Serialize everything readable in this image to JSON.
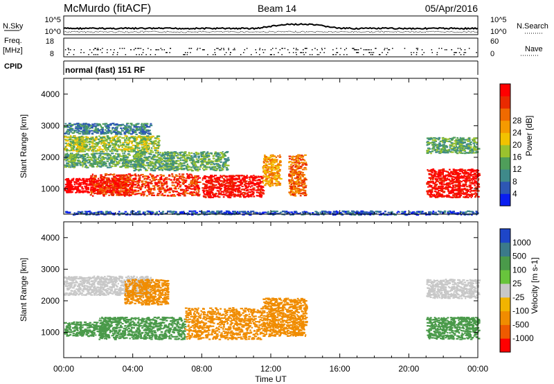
{
  "header": {
    "station": "McMurdo (fitACF)",
    "beam": "Beam 14",
    "date": "05/Apr/2016"
  },
  "status_panels": {
    "nsky_label": "N.Sky",
    "nsky_ticks": [
      "10^5",
      "10^0"
    ],
    "nsearch_label": "N.Search",
    "nsearch_ticks": [
      "10^5",
      "10^0"
    ],
    "freq_label": "Freq.",
    "freq_unit": "[MHz]",
    "freq_ticks": [
      "18",
      "8"
    ],
    "nave_label": "Nave",
    "nave_ticks": [
      "60",
      "0"
    ],
    "cpid_label": "CPID",
    "cpid_text": "normal (fast) 151 RF"
  },
  "chart_data": [
    {
      "type": "heatmap",
      "name": "power",
      "ylabel": "Slant Range [km]",
      "y_ticks": [
        1000,
        2000,
        3000,
        4000
      ],
      "ylim": [
        200,
        4500
      ],
      "xlim_hours": [
        0,
        24
      ],
      "colorbar": {
        "label": "Power [dB]",
        "ticks": [
          "4",
          "8",
          "12",
          "16",
          "20",
          "24",
          "28"
        ],
        "colors": [
          "#0a1ef0",
          "#2e57b4",
          "#3f8a8a",
          "#4f9e5a",
          "#9ac22e",
          "#f2c200",
          "#f59a00",
          "#f06a00",
          "#e92a00",
          "#ff0000"
        ]
      },
      "regions": [
        {
          "t0": 0.0,
          "t1": 4.0,
          "r0": 900,
          "r1": 1350,
          "level": 10
        },
        {
          "t0": 0.0,
          "t1": 4.5,
          "r0": 1700,
          "r1": 2150,
          "level": 3
        },
        {
          "t0": 0.0,
          "t1": 5.5,
          "r0": 2200,
          "r1": 2700,
          "level": 4
        },
        {
          "t0": 0.0,
          "t1": 5.0,
          "r0": 2750,
          "r1": 3100,
          "level": 2
        },
        {
          "t0": 1.5,
          "t1": 7.8,
          "r0": 800,
          "r1": 1500,
          "level": 8
        },
        {
          "t0": 4.0,
          "t1": 9.5,
          "r0": 1600,
          "r1": 2200,
          "level": 3
        },
        {
          "t0": 8.0,
          "t1": 11.5,
          "r0": 750,
          "r1": 1450,
          "level": 9
        },
        {
          "t0": 11.5,
          "t1": 12.5,
          "r0": 1100,
          "r1": 2100,
          "level": 6
        },
        {
          "t0": 13.0,
          "t1": 14.0,
          "r0": 800,
          "r1": 2100,
          "level": 7
        },
        {
          "t0": 21.0,
          "t1": 24.0,
          "r0": 750,
          "r1": 1650,
          "level": 9
        },
        {
          "t0": 21.0,
          "t1": 24.0,
          "r0": 2150,
          "r1": 2650,
          "level": 3
        },
        {
          "t0": 0.0,
          "t1": 24.0,
          "r0": 200,
          "r1": 320,
          "level": 1
        }
      ]
    },
    {
      "type": "heatmap",
      "name": "velocity",
      "ylabel": "Slant Range [km]",
      "y_ticks": [
        1000,
        2000,
        3000,
        4000
      ],
      "ylim": [
        200,
        4500
      ],
      "xlim_hours": [
        0,
        24
      ],
      "xlabel": "Time UT",
      "x_ticks": [
        "00:00",
        "04:00",
        "08:00",
        "12:00",
        "16:00",
        "20:00",
        "00:00"
      ],
      "colorbar": {
        "label": "Velocity [m s-1]",
        "ticks": [
          "1000",
          "500",
          "100",
          "25",
          "-25",
          "-100",
          "-500",
          "-1000"
        ],
        "colors": [
          "#1e46c8",
          "#3b7a8a",
          "#4a9a4a",
          "#68c43c",
          "#c8c8c8",
          "#f2b400",
          "#f08c00",
          "#ee5a00",
          "#ff0000"
        ]
      },
      "regions": [
        {
          "t0": 0.0,
          "t1": 2.5,
          "r0": 900,
          "r1": 1350,
          "v": 300
        },
        {
          "t0": 0.0,
          "t1": 5.0,
          "r0": 2200,
          "r1": 2800,
          "v": -10
        },
        {
          "t0": 3.5,
          "t1": 6.0,
          "r0": 1900,
          "r1": 2700,
          "v": -300
        },
        {
          "t0": 2.0,
          "t1": 7.0,
          "r0": 800,
          "r1": 1500,
          "v": 200
        },
        {
          "t0": 7.0,
          "t1": 11.5,
          "r0": 800,
          "r1": 1800,
          "v": -300
        },
        {
          "t0": 11.5,
          "t1": 14.0,
          "r0": 900,
          "r1": 2100,
          "v": -300
        },
        {
          "t0": 21.0,
          "t1": 24.0,
          "r0": 800,
          "r1": 1500,
          "v": 300
        },
        {
          "t0": 21.0,
          "t1": 24.0,
          "r0": 2100,
          "r1": 2700,
          "v": -10
        }
      ]
    }
  ]
}
